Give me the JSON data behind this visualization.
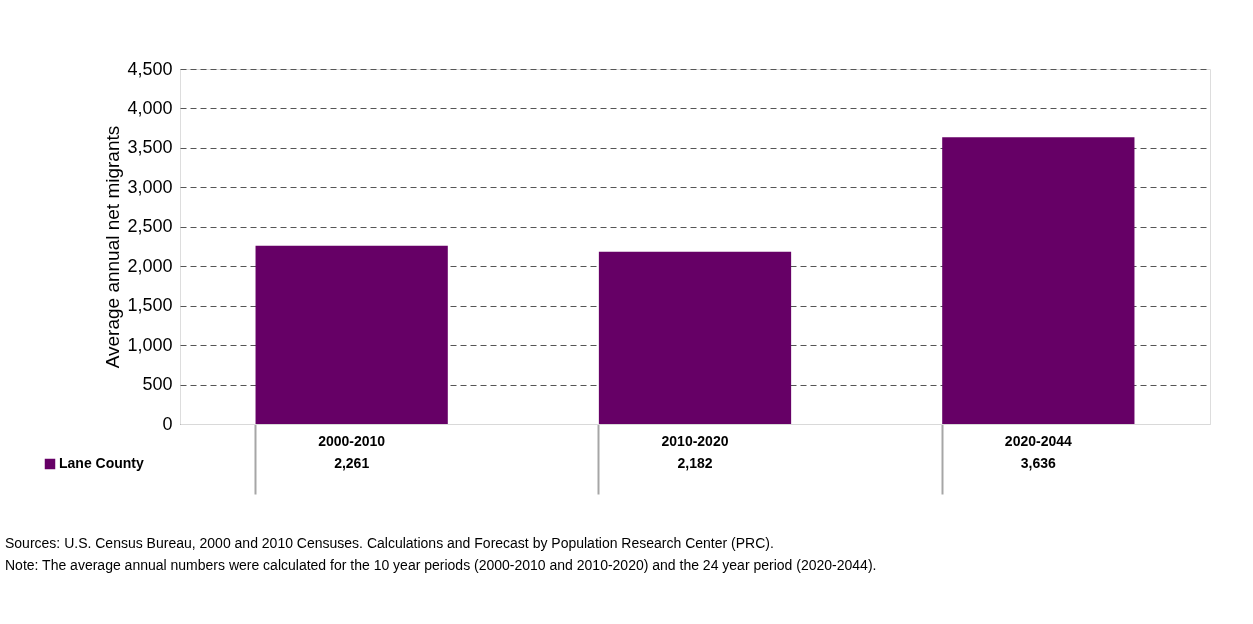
{
  "chart_data": {
    "type": "bar",
    "ylabel": "Average annual net migrants",
    "categories": [
      "2000-2010",
      "2010-2020",
      "2020-2044"
    ],
    "series": [
      {
        "name": "Lane County",
        "color": "#660066",
        "values": [
          2261,
          2182,
          3636
        ],
        "value_labels": [
          "2,261",
          "2,182",
          "3,636"
        ]
      }
    ],
    "ylim": [
      0,
      4500
    ],
    "yticks": [
      0,
      500,
      {
        "value": 1000,
        "label": "1,000"
      },
      {
        "value": 1500,
        "label": "1,500"
      },
      {
        "value": 2000,
        "label": "2,000"
      },
      {
        "value": 2500,
        "label": "2,500"
      },
      {
        "value": 3000,
        "label": "3,000"
      },
      {
        "value": 3500,
        "label": "3,500"
      },
      {
        "value": 4000,
        "label": "4,000"
      },
      {
        "value": 4500,
        "label": "4,500"
      }
    ],
    "grid": "y",
    "legend": "bottom left",
    "annotations": [
      "Sources: U.S. Census Bureau, 2000 and 2010 Censuses. Calculations and Forecast by Population Research Center (PRC).",
      "Note: The average annual numbers were calculated for the 10 year periods (2000-2010 and 2010-2020) and the 24 year period (2020-2044)."
    ]
  }
}
